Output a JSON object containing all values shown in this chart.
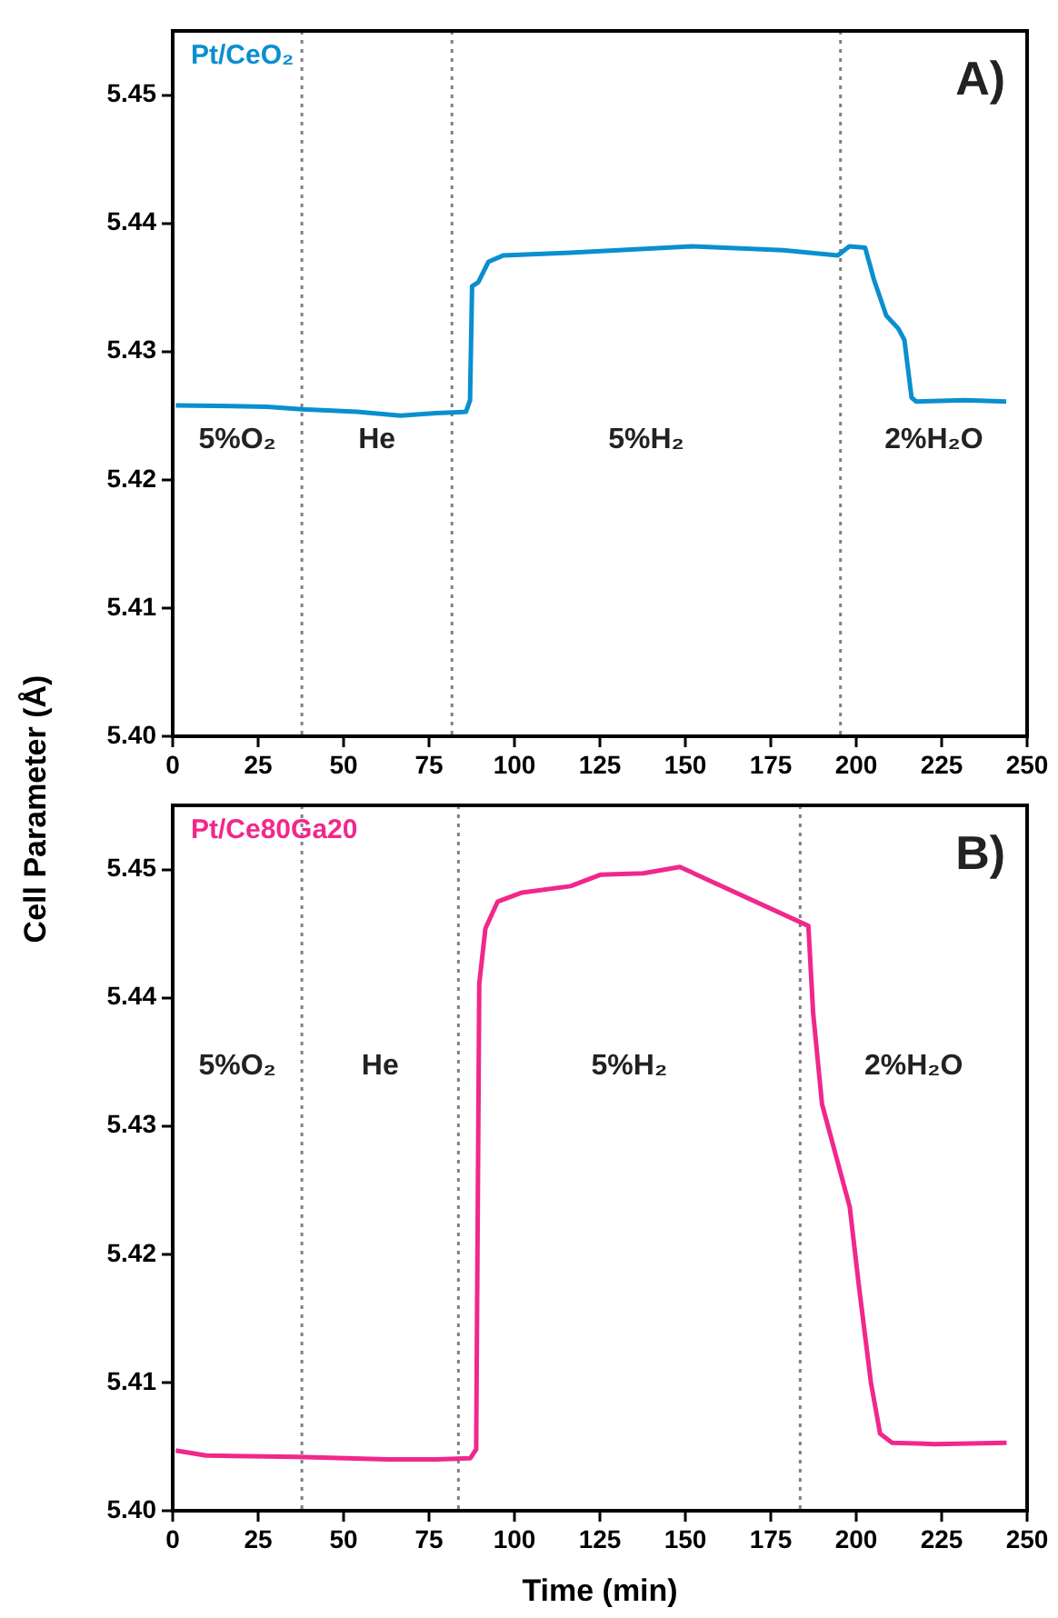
{
  "chart_data": [
    {
      "type": "line",
      "ylabel": "Cell Parameter (Å)",
      "xlim": [
        0,
        250
      ],
      "xticks": [
        0,
        25,
        50,
        75,
        100,
        125,
        150,
        175,
        200,
        225,
        250
      ],
      "ylim": [
        5.4,
        5.455
      ],
      "yticks": [
        {
          "value": 5.4,
          "label": "5.40"
        },
        5.41,
        5.42,
        5.43,
        5.44,
        5.45
      ],
      "tick_labels": "xy",
      "grid": false,
      "line_style": "solid",
      "marker": "none",
      "series": [
        {
          "name": "Pt/CeO₂",
          "color": "#0a8fcf",
          "x": [
            0.9,
            27.5,
            37.8,
            54,
            66.6,
            77,
            85.8,
            87,
            87.6,
            89.4,
            92.4,
            96.8,
            116.4,
            152,
            178.6,
            194.6,
            198,
            202.6,
            205.2,
            208.8,
            212.3,
            214.1,
            216.2,
            217.6,
            231.9,
            243.9
          ],
          "values": [
            5.4258,
            5.4257,
            5.4255,
            5.4253,
            5.425,
            5.4252,
            5.4253,
            5.4262,
            5.4351,
            5.4354,
            5.437,
            5.4375,
            5.4377,
            5.4382,
            5.4379,
            5.4375,
            5.4382,
            5.4381,
            5.4356,
            5.4328,
            5.4318,
            5.4309,
            5.4264,
            5.4261,
            5.4262,
            5.4261
          ]
        }
      ],
      "ref_lines": [
        {
          "axis": "x",
          "value": 37.8,
          "color": "#808080",
          "line_style": "dotted"
        },
        {
          "axis": "x",
          "value": 81.7,
          "color": "#808080",
          "line_style": "dotted"
        },
        {
          "axis": "x",
          "value": 195.4,
          "color": "#808080",
          "line_style": "dotted"
        }
      ],
      "annotations": [
        "A)",
        "5%O₂",
        "He",
        "5%H₂",
        "2%H₂O"
      ]
    },
    {
      "type": "line",
      "xlabel": "Time (min)",
      "xlim": [
        0,
        250
      ],
      "xticks": [
        0,
        25,
        50,
        75,
        100,
        125,
        150,
        175,
        200,
        225,
        250
      ],
      "ylim": [
        5.4,
        5.455
      ],
      "yticks": [
        {
          "value": 5.4,
          "label": "5.40"
        },
        5.41,
        5.42,
        5.43,
        5.44,
        5.45
      ],
      "grid": false,
      "line_style": "solid",
      "marker": "none",
      "series": [
        {
          "name": "Pt/Ce80Ga20",
          "color": "#f0288c",
          "x": [
            0.9,
            9.8,
            36.4,
            63,
            77.3,
            87.1,
            88.8,
            89.7,
            91.5,
            95.1,
            102.2,
            116.4,
            125.3,
            137.7,
            148.4,
            186,
            187.4,
            190,
            198.1,
            200.8,
            204.3,
            207,
            210.5,
            223,
            244
          ],
          "values": [
            5.4047,
            5.4043,
            5.4042,
            5.404,
            5.404,
            5.4041,
            5.4048,
            5.4411,
            5.4454,
            5.4475,
            5.4482,
            5.4487,
            5.4496,
            5.4497,
            5.4502,
            5.4456,
            5.4388,
            5.4317,
            5.4237,
            5.4175,
            5.41,
            5.406,
            5.4053,
            5.4052,
            5.4053
          ]
        }
      ],
      "ref_lines": [
        {
          "axis": "x",
          "value": 37.8,
          "color": "#808080",
          "line_style": "dotted"
        },
        {
          "axis": "x",
          "value": 83.6,
          "color": "#808080",
          "line_style": "dotted"
        },
        {
          "axis": "x",
          "value": 183.6,
          "color": "#808080",
          "line_style": "dotted"
        }
      ],
      "annotations": [
        "B)",
        "5%O₂",
        "He",
        "5%H₂",
        "2%H₂O"
      ]
    }
  ]
}
